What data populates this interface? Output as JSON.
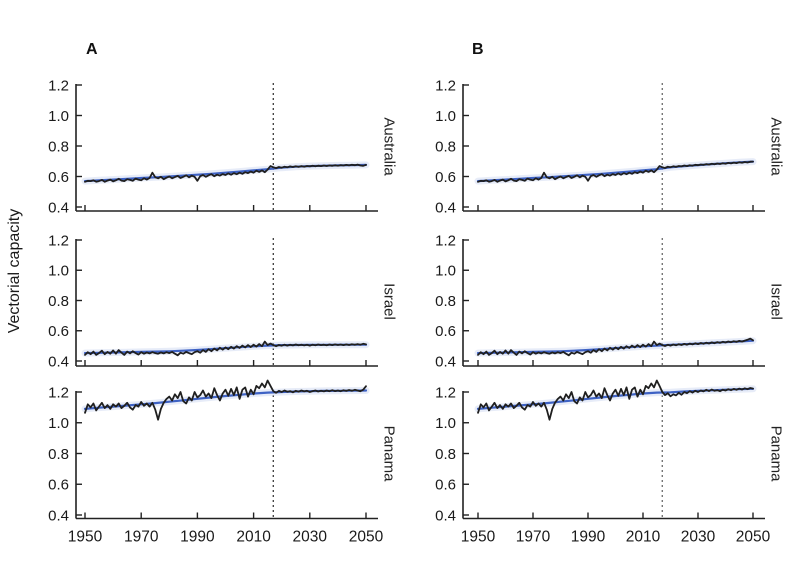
{
  "figure": {
    "columns": [
      {
        "label": "A"
      },
      {
        "label": "B"
      }
    ],
    "row_labels": [
      "Australia",
      "Israel",
      "Panama"
    ],
    "ylabel": "Vectorial capacity"
  },
  "chart_data": {
    "type": "line",
    "title": "",
    "xlabel": "",
    "ylabel": "Vectorial capacity",
    "panel_columns": [
      "A",
      "B"
    ],
    "panel_rows": [
      "Australia",
      "Israel",
      "Panama"
    ],
    "x_range": [
      1950,
      2050
    ],
    "y_range": [
      0.4,
      1.2
    ],
    "x_ticks": [
      1950,
      1970,
      1990,
      2010,
      2030,
      2050
    ],
    "y_ticks": [
      0.4,
      0.6,
      0.8,
      1.0,
      1.2
    ],
    "forecast_start_year": 2017,
    "grid": false,
    "legend": "none",
    "colors": {
      "observed": "#1f1f1f",
      "trend": "#3e62c4",
      "trend_ribbon": "#d4ddf2",
      "divider_a": "#2a2a2a",
      "divider_b": "#5f5f5f"
    },
    "panels": [
      {
        "column": "A",
        "country": "Australia",
        "col": 0,
        "row": 0,
        "observed": {
          "start_year": 1950,
          "step": 1,
          "values": [
            0.565,
            0.572,
            0.57,
            0.575,
            0.566,
            0.57,
            0.578,
            0.565,
            0.573,
            0.58,
            0.568,
            0.575,
            0.585,
            0.573,
            0.57,
            0.582,
            0.578,
            0.572,
            0.586,
            0.58,
            0.575,
            0.588,
            0.58,
            0.59,
            0.625,
            0.595,
            0.588,
            0.598,
            0.582,
            0.592,
            0.6,
            0.588,
            0.596,
            0.604,
            0.59,
            0.598,
            0.608,
            0.595,
            0.605,
            0.598,
            0.572,
            0.602,
            0.61,
            0.598,
            0.608,
            0.615,
            0.602,
            0.612,
            0.606,
            0.616,
            0.61,
            0.62,
            0.612,
            0.622,
            0.615,
            0.625,
            0.618,
            0.628,
            0.622,
            0.632,
            0.625,
            0.638,
            0.63,
            0.64,
            0.628,
            0.645,
            0.668,
            0.66,
            0.655,
            0.662,
            0.658,
            0.664,
            0.66,
            0.666,
            0.662,
            0.667,
            0.663,
            0.668,
            0.664,
            0.669,
            0.666,
            0.67,
            0.667,
            0.671,
            0.668,
            0.672,
            0.669,
            0.673,
            0.67,
            0.674,
            0.671,
            0.675,
            0.672,
            0.676,
            0.673,
            0.677,
            0.674,
            0.678,
            0.672,
            0.67,
            0.676
          ]
        },
        "trend": {
          "start_year": 1950,
          "step": 5,
          "values": [
            0.57,
            0.575,
            0.58,
            0.585,
            0.59,
            0.595,
            0.6,
            0.606,
            0.612,
            0.618,
            0.625,
            0.632,
            0.64,
            0.648,
            0.658,
            0.664,
            0.668,
            0.671,
            0.673,
            0.674,
            0.676
          ]
        }
      },
      {
        "column": "A",
        "country": "Israel",
        "col": 0,
        "row": 1,
        "observed": {
          "start_year": 1950,
          "step": 1,
          "values": [
            0.44,
            0.458,
            0.445,
            0.462,
            0.44,
            0.452,
            0.468,
            0.445,
            0.46,
            0.448,
            0.47,
            0.448,
            0.472,
            0.455,
            0.44,
            0.462,
            0.45,
            0.465,
            0.452,
            0.442,
            0.458,
            0.448,
            0.456,
            0.45,
            0.458,
            0.452,
            0.448,
            0.456,
            0.45,
            0.458,
            0.452,
            0.46,
            0.448,
            0.438,
            0.455,
            0.448,
            0.46,
            0.452,
            0.445,
            0.458,
            0.465,
            0.455,
            0.472,
            0.46,
            0.478,
            0.465,
            0.482,
            0.47,
            0.488,
            0.475,
            0.49,
            0.478,
            0.494,
            0.482,
            0.498,
            0.486,
            0.502,
            0.49,
            0.505,
            0.492,
            0.508,
            0.495,
            0.512,
            0.498,
            0.528,
            0.505,
            0.515,
            0.505,
            0.498,
            0.506,
            0.501,
            0.508,
            0.502,
            0.507,
            0.503,
            0.509,
            0.504,
            0.508,
            0.503,
            0.507,
            0.502,
            0.508,
            0.504,
            0.509,
            0.505,
            0.508,
            0.504,
            0.509,
            0.505,
            0.51,
            0.506,
            0.509,
            0.505,
            0.51,
            0.506,
            0.511,
            0.507,
            0.512,
            0.508,
            0.514,
            0.51
          ]
        },
        "trend": {
          "start_year": 1950,
          "step": 5,
          "values": [
            0.452,
            0.454,
            0.456,
            0.458,
            0.46,
            0.462,
            0.464,
            0.468,
            0.473,
            0.479,
            0.485,
            0.491,
            0.497,
            0.502,
            0.505,
            0.506,
            0.507,
            0.507,
            0.508,
            0.508,
            0.508
          ]
        }
      },
      {
        "column": "A",
        "country": "Panama",
        "col": 0,
        "row": 2,
        "observed": {
          "start_year": 1950,
          "step": 1,
          "values": [
            1.065,
            1.12,
            1.1,
            1.125,
            1.08,
            1.105,
            1.13,
            1.095,
            1.115,
            1.09,
            1.12,
            1.105,
            1.125,
            1.095,
            1.11,
            1.13,
            1.1,
            1.085,
            1.115,
            1.105,
            1.135,
            1.11,
            1.125,
            1.105,
            1.13,
            1.085,
            1.02,
            1.09,
            1.13,
            1.155,
            1.17,
            1.145,
            1.185,
            1.16,
            1.2,
            1.14,
            1.125,
            1.165,
            1.145,
            1.2,
            1.165,
            1.18,
            1.21,
            1.17,
            1.19,
            1.16,
            1.225,
            1.18,
            1.145,
            1.19,
            1.215,
            1.175,
            1.22,
            1.18,
            1.23,
            1.155,
            1.215,
            1.23,
            1.17,
            1.215,
            1.185,
            1.24,
            1.225,
            1.255,
            1.23,
            1.275,
            1.24,
            1.205,
            1.195,
            1.208,
            1.2,
            1.21,
            1.202,
            1.206,
            1.198,
            1.208,
            1.202,
            1.21,
            1.204,
            1.208,
            1.2,
            1.206,
            1.21,
            1.203,
            1.208,
            1.204,
            1.21,
            1.205,
            1.212,
            1.206,
            1.21,
            1.205,
            1.212,
            1.207,
            1.213,
            1.208,
            1.214,
            1.21,
            1.205,
            1.215,
            1.238
          ]
        },
        "trend": {
          "start_year": 1950,
          "step": 5,
          "values": [
            1.09,
            1.098,
            1.105,
            1.112,
            1.12,
            1.128,
            1.137,
            1.146,
            1.156,
            1.165,
            1.174,
            1.182,
            1.19,
            1.196,
            1.2,
            1.203,
            1.205,
            1.207,
            1.208,
            1.209,
            1.21
          ]
        }
      },
      {
        "column": "B",
        "country": "Australia",
        "col": 1,
        "row": 0,
        "observed": {
          "start_year": 1950,
          "step": 1,
          "values": [
            0.565,
            0.572,
            0.57,
            0.575,
            0.566,
            0.57,
            0.578,
            0.565,
            0.573,
            0.58,
            0.568,
            0.575,
            0.585,
            0.573,
            0.57,
            0.582,
            0.578,
            0.572,
            0.586,
            0.58,
            0.575,
            0.588,
            0.58,
            0.59,
            0.625,
            0.595,
            0.588,
            0.598,
            0.582,
            0.592,
            0.6,
            0.588,
            0.596,
            0.604,
            0.59,
            0.598,
            0.608,
            0.595,
            0.605,
            0.598,
            0.572,
            0.602,
            0.61,
            0.598,
            0.608,
            0.615,
            0.602,
            0.612,
            0.606,
            0.616,
            0.61,
            0.62,
            0.612,
            0.622,
            0.615,
            0.625,
            0.618,
            0.628,
            0.622,
            0.632,
            0.625,
            0.638,
            0.63,
            0.64,
            0.628,
            0.645,
            0.668,
            0.66,
            0.656,
            0.664,
            0.661,
            0.667,
            0.663,
            0.669,
            0.666,
            0.672,
            0.668,
            0.674,
            0.671,
            0.677,
            0.674,
            0.679,
            0.676,
            0.681,
            0.678,
            0.683,
            0.68,
            0.685,
            0.682,
            0.687,
            0.684,
            0.689,
            0.686,
            0.691,
            0.688,
            0.693,
            0.69,
            0.695,
            0.692,
            0.697,
            0.698
          ]
        },
        "trend": {
          "start_year": 1950,
          "step": 5,
          "values": [
            0.57,
            0.575,
            0.58,
            0.585,
            0.59,
            0.595,
            0.6,
            0.606,
            0.612,
            0.618,
            0.625,
            0.632,
            0.64,
            0.648,
            0.66,
            0.668,
            0.675,
            0.681,
            0.687,
            0.693,
            0.698
          ]
        }
      },
      {
        "column": "B",
        "country": "Israel",
        "col": 1,
        "row": 1,
        "observed": {
          "start_year": 1950,
          "step": 1,
          "values": [
            0.44,
            0.458,
            0.445,
            0.462,
            0.44,
            0.452,
            0.468,
            0.445,
            0.46,
            0.448,
            0.47,
            0.448,
            0.472,
            0.455,
            0.44,
            0.462,
            0.45,
            0.465,
            0.452,
            0.442,
            0.458,
            0.448,
            0.456,
            0.45,
            0.458,
            0.452,
            0.448,
            0.456,
            0.45,
            0.458,
            0.452,
            0.46,
            0.448,
            0.438,
            0.455,
            0.448,
            0.46,
            0.452,
            0.445,
            0.458,
            0.465,
            0.455,
            0.472,
            0.46,
            0.478,
            0.465,
            0.482,
            0.47,
            0.488,
            0.475,
            0.49,
            0.478,
            0.494,
            0.482,
            0.498,
            0.486,
            0.502,
            0.49,
            0.505,
            0.492,
            0.508,
            0.495,
            0.512,
            0.498,
            0.528,
            0.505,
            0.515,
            0.505,
            0.499,
            0.507,
            0.502,
            0.509,
            0.504,
            0.511,
            0.506,
            0.513,
            0.508,
            0.515,
            0.51,
            0.517,
            0.512,
            0.519,
            0.514,
            0.521,
            0.516,
            0.523,
            0.518,
            0.525,
            0.52,
            0.527,
            0.522,
            0.529,
            0.524,
            0.531,
            0.526,
            0.533,
            0.528,
            0.535,
            0.54,
            0.548,
            0.537
          ]
        },
        "trend": {
          "start_year": 1950,
          "step": 5,
          "values": [
            0.452,
            0.454,
            0.456,
            0.458,
            0.46,
            0.462,
            0.464,
            0.468,
            0.473,
            0.479,
            0.485,
            0.491,
            0.497,
            0.502,
            0.507,
            0.511,
            0.515,
            0.52,
            0.524,
            0.529,
            0.534
          ]
        }
      },
      {
        "column": "B",
        "country": "Panama",
        "col": 1,
        "row": 2,
        "observed": {
          "start_year": 1950,
          "step": 1,
          "values": [
            1.065,
            1.12,
            1.1,
            1.125,
            1.08,
            1.105,
            1.13,
            1.095,
            1.115,
            1.09,
            1.12,
            1.105,
            1.125,
            1.095,
            1.11,
            1.13,
            1.1,
            1.085,
            1.115,
            1.105,
            1.135,
            1.11,
            1.125,
            1.105,
            1.13,
            1.085,
            1.02,
            1.09,
            1.13,
            1.155,
            1.17,
            1.145,
            1.185,
            1.16,
            1.2,
            1.14,
            1.125,
            1.165,
            1.145,
            1.2,
            1.165,
            1.18,
            1.21,
            1.17,
            1.19,
            1.16,
            1.225,
            1.18,
            1.145,
            1.19,
            1.215,
            1.175,
            1.22,
            1.18,
            1.23,
            1.155,
            1.215,
            1.23,
            1.17,
            1.215,
            1.185,
            1.24,
            1.225,
            1.255,
            1.23,
            1.275,
            1.24,
            1.2,
            1.18,
            1.192,
            1.172,
            1.185,
            1.178,
            1.195,
            1.182,
            1.2,
            1.192,
            1.205,
            1.196,
            1.208,
            1.2,
            1.21,
            1.204,
            1.214,
            1.206,
            1.216,
            1.208,
            1.212,
            1.205,
            1.215,
            1.21,
            1.218,
            1.212,
            1.22,
            1.214,
            1.222,
            1.216,
            1.224,
            1.218,
            1.226,
            1.222
          ]
        },
        "trend": {
          "start_year": 1950,
          "step": 5,
          "values": [
            1.09,
            1.098,
            1.105,
            1.112,
            1.12,
            1.128,
            1.137,
            1.146,
            1.156,
            1.165,
            1.174,
            1.182,
            1.19,
            1.196,
            1.198,
            1.203,
            1.207,
            1.211,
            1.215,
            1.218,
            1.221
          ]
        }
      }
    ]
  }
}
